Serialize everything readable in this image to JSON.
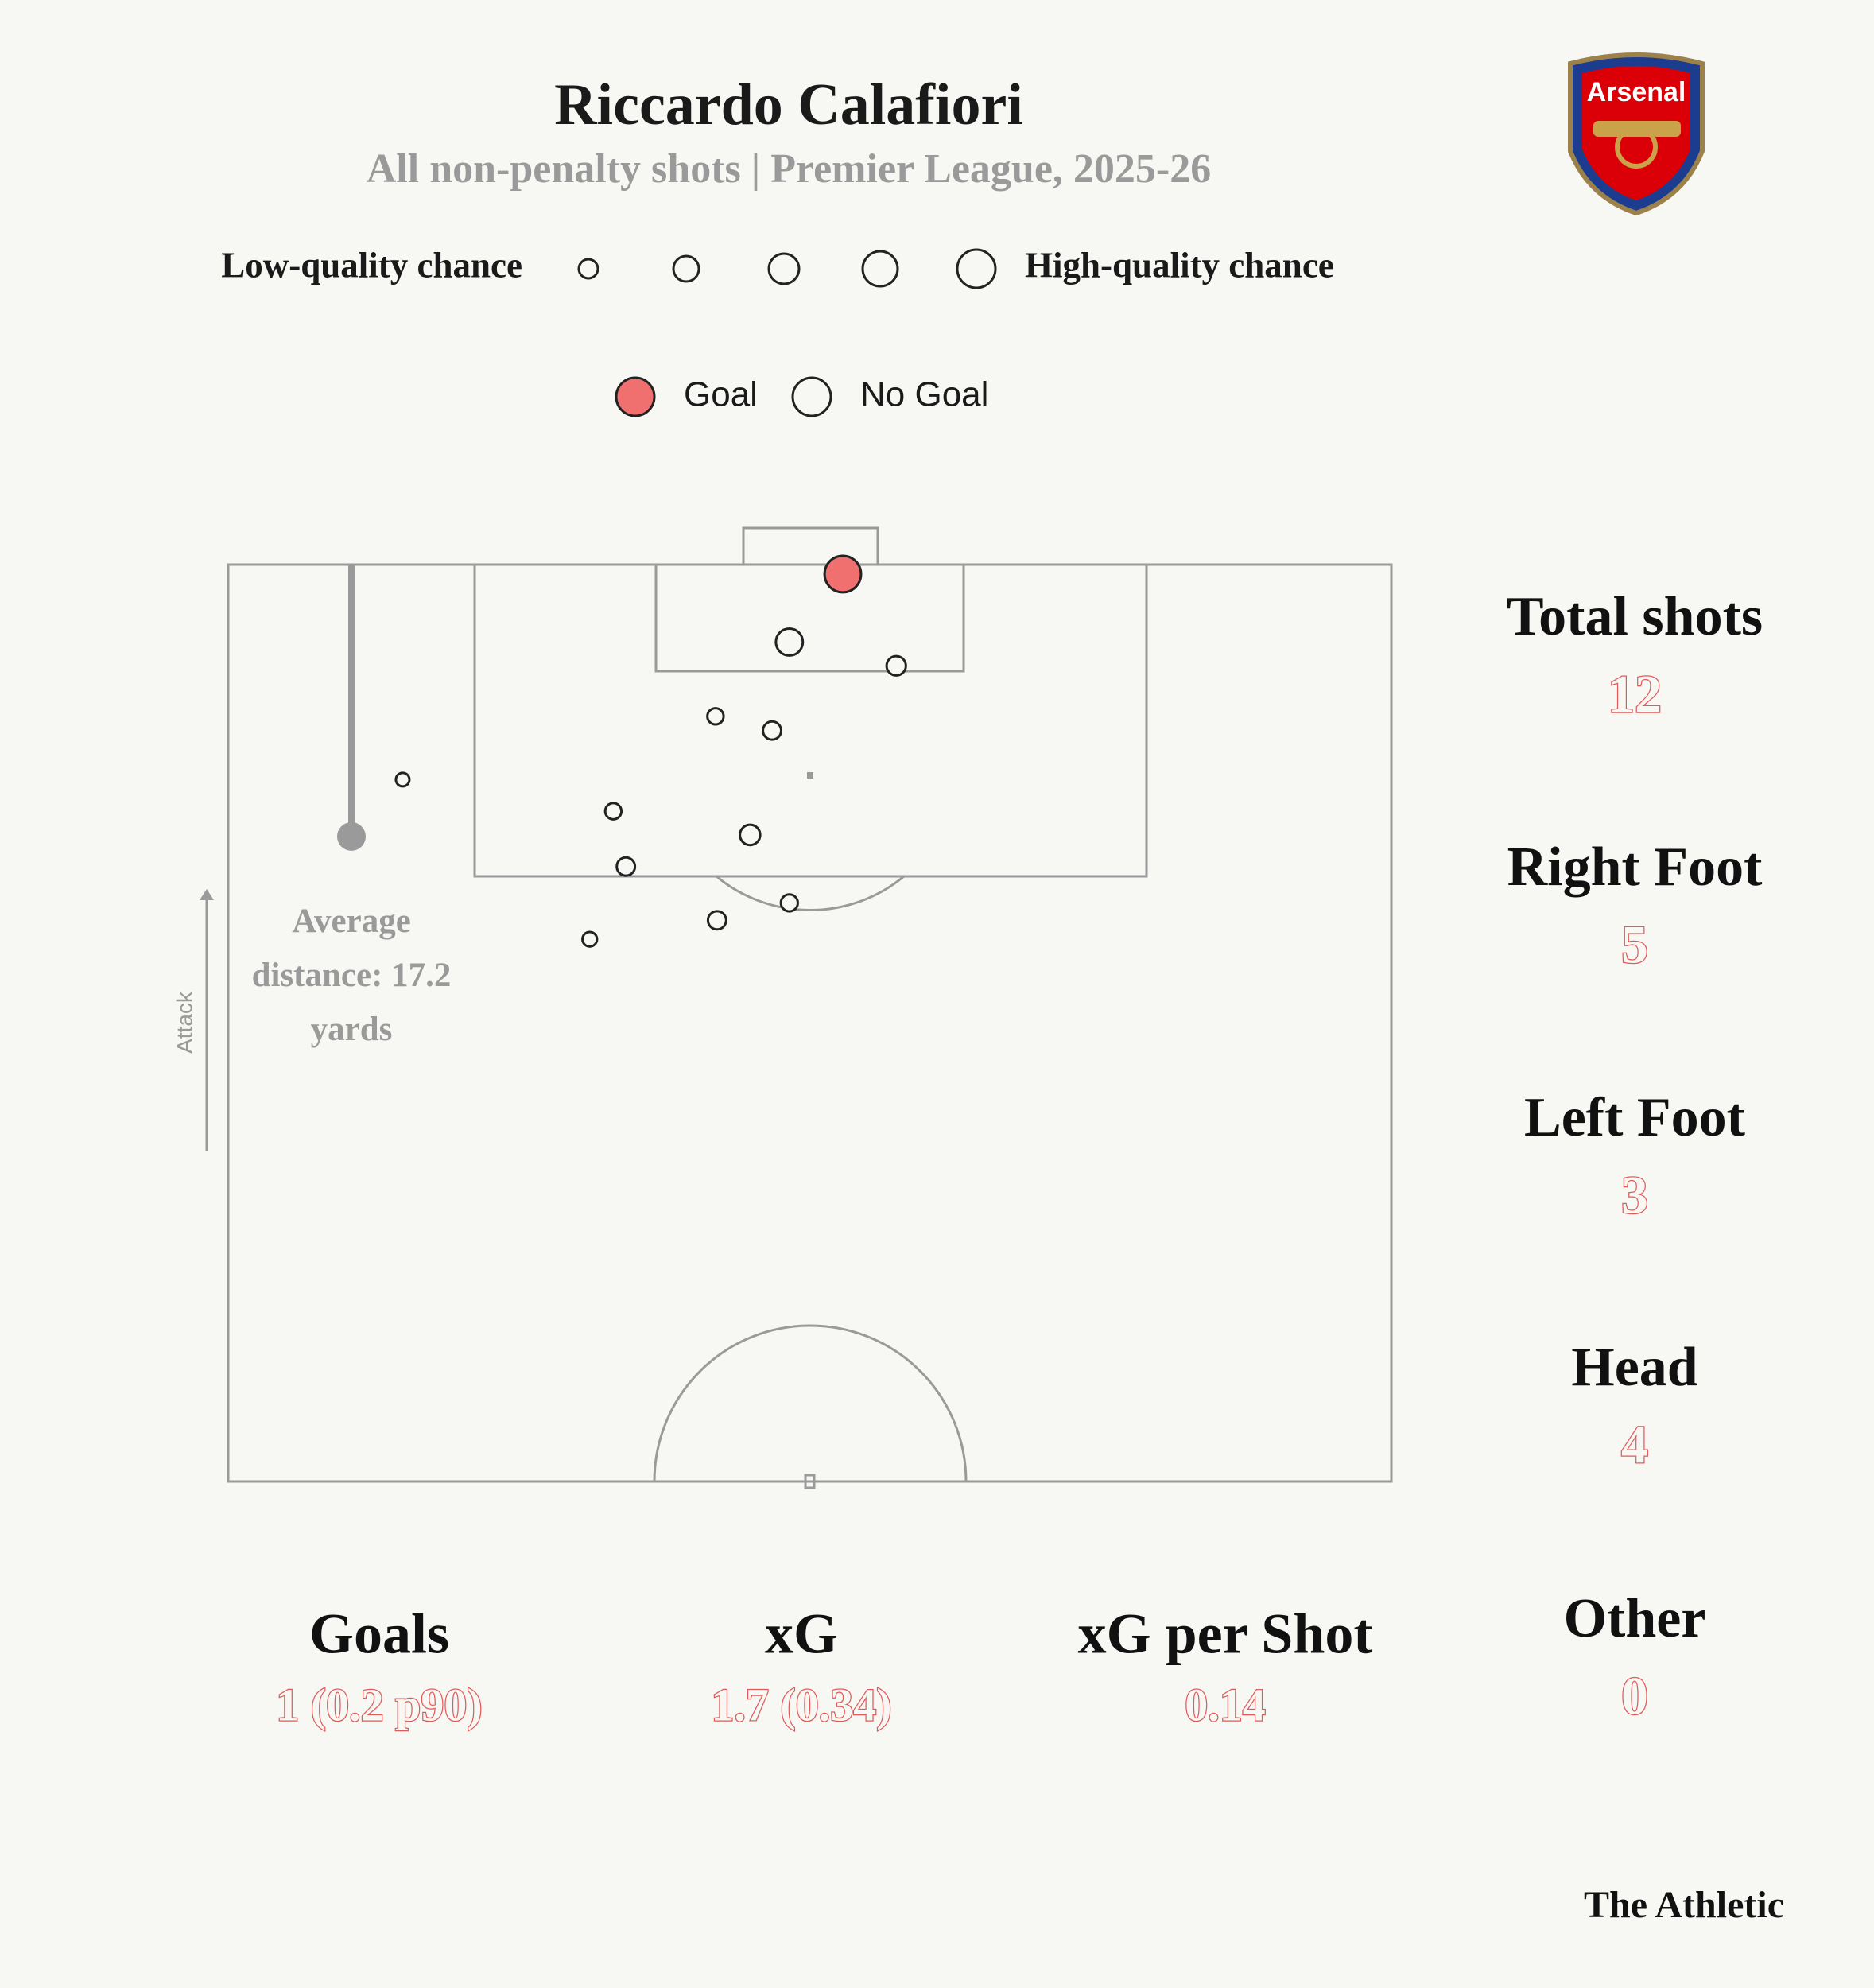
{
  "chart_data": {
    "type": "scatter",
    "title": "Riccardo Calafiori",
    "subtitle": "All non-penalty shots | Premier League, 2025-26",
    "size_legend": {
      "low": "Low-quality chance",
      "high": "High-quality chance"
    },
    "xlim": [
      0,
      74
    ],
    "ylim": [
      0,
      58
    ],
    "series": [
      {
        "name": "Goal",
        "color": "#f07070",
        "x": [
          39.1
        ],
        "values": [
          0.6
        ],
        "sizes": [
          0.7
        ]
      },
      {
        "name": "No Goal",
        "color": "#f7f7f4",
        "x": [
          35.7,
          42.5,
          31.0,
          34.6,
          11.1,
          24.5,
          33.2,
          25.3,
          35.7,
          31.1,
          23.0
        ],
        "values": [
          4.9,
          6.4,
          9.6,
          10.5,
          13.6,
          15.6,
          17.1,
          19.1,
          21.4,
          22.5,
          23.7
        ],
        "sizes": [
          0.3,
          0.1,
          0.05,
          0.08,
          0.02,
          0.05,
          0.12,
          0.08,
          0.06,
          0.08,
          0.03
        ]
      }
    ],
    "average_distance": {
      "label": "Average distance:",
      "value": 17.2,
      "unit": "yards"
    },
    "attack_label": "Attack",
    "stats": [
      {
        "label": "Total shots",
        "value": 12
      },
      {
        "label": "Right Foot",
        "value": 5
      },
      {
        "label": "Left Foot",
        "value": 3
      },
      {
        "label": "Head",
        "value": 4
      },
      {
        "label": "Other",
        "value": 0
      }
    ],
    "summary": [
      {
        "label": "Goals",
        "value": "1 (0.2 p90)"
      },
      {
        "label": "xG",
        "value": "1.7 (0.34)"
      },
      {
        "label": "xG per Shot",
        "value": "0.14"
      }
    ],
    "logo_text": "Arsenal",
    "source": "The Athletic"
  }
}
